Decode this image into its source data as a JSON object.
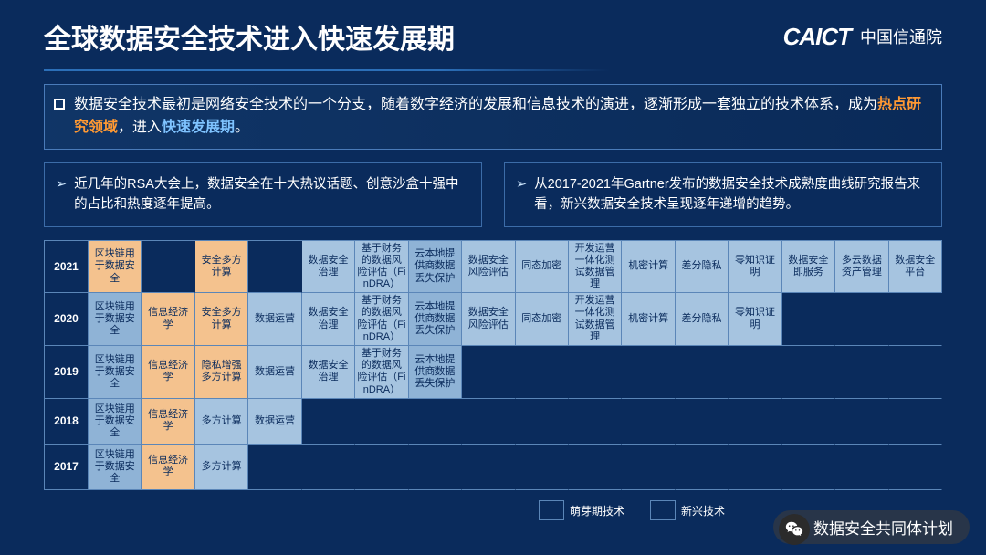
{
  "header": {
    "title": "全球数据安全技术进入快速发展期",
    "logo_en": "CAICT",
    "logo_cn": "中国信通院"
  },
  "description": {
    "pre": "数据安全技术最初是网络安全技术的一个分支，随着数字经济的发展和信息技术的演进，逐渐形成一套独立的技术体系，成为",
    "hl1": "热点研究领域",
    "mid": "，进入",
    "hl2": "快速发展期",
    "post": "。"
  },
  "callouts": {
    "left": "近几年的RSA大会上，数据安全在十大热议话题、创意沙盒十强中的占比和热度逐年提高。",
    "right": "从2017-2021年Gartner发布的数据安全技术成熟度曲线研究报告来看，新兴数据安全技术呈现逐年递增的趋势。"
  },
  "grid": {
    "years": [
      "2021",
      "2020",
      "2019",
      "2018",
      "2017"
    ],
    "rows": [
      [
        {
          "t": "区块链用于数据安全",
          "c": "c-orange"
        },
        {
          "t": "",
          "c": "c-empty"
        },
        {
          "t": "安全多方计算",
          "c": "c-orange"
        },
        {
          "t": "",
          "c": "c-empty"
        },
        {
          "t": "数据安全治理",
          "c": "c-blue1"
        },
        {
          "t": "基于财务的数据风险评估（FinDRA）",
          "c": "c-blue1"
        },
        {
          "t": "云本地提供商数据丢失保护",
          "c": "c-blue2"
        },
        {
          "t": "数据安全风险评估",
          "c": "c-blue1"
        },
        {
          "t": "同态加密",
          "c": "c-blue1"
        },
        {
          "t": "开发运营一体化测试数据管理",
          "c": "c-blue1"
        },
        {
          "t": "机密计算",
          "c": "c-blue1"
        },
        {
          "t": "差分隐私",
          "c": "c-blue1"
        },
        {
          "t": "零知识证明",
          "c": "c-blue1"
        },
        {
          "t": "数据安全即服务",
          "c": "c-blue1"
        },
        {
          "t": "多云数据资产管理",
          "c": "c-blue1"
        },
        {
          "t": "数据安全平台",
          "c": "c-blue1"
        }
      ],
      [
        {
          "t": "区块链用于数据安全",
          "c": "c-blue2"
        },
        {
          "t": "信息经济学",
          "c": "c-orange"
        },
        {
          "t": "安全多方计算",
          "c": "c-orange"
        },
        {
          "t": "数据运营",
          "c": "c-blue1"
        },
        {
          "t": "数据安全治理",
          "c": "c-blue1"
        },
        {
          "t": "基于财务的数据风险评估（FinDRA）",
          "c": "c-blue1"
        },
        {
          "t": "云本地提供商数据丢失保护",
          "c": "c-blue2"
        },
        {
          "t": "数据安全风险评估",
          "c": "c-blue1"
        },
        {
          "t": "同态加密",
          "c": "c-blue1"
        },
        {
          "t": "开发运营一体化测试数据管理",
          "c": "c-blue1"
        },
        {
          "t": "机密计算",
          "c": "c-blue1"
        },
        {
          "t": "差分隐私",
          "c": "c-blue1"
        },
        {
          "t": "零知识证明",
          "c": "c-blue1"
        },
        {
          "t": "",
          "c": "c-empty"
        },
        {
          "t": "",
          "c": "c-empty"
        },
        {
          "t": "",
          "c": "c-empty"
        }
      ],
      [
        {
          "t": "区块链用于数据安全",
          "c": "c-blue2"
        },
        {
          "t": "信息经济学",
          "c": "c-orange"
        },
        {
          "t": "隐私增强多方计算",
          "c": "c-orange"
        },
        {
          "t": "数据运营",
          "c": "c-blue1"
        },
        {
          "t": "数据安全治理",
          "c": "c-blue1"
        },
        {
          "t": "基于财务的数据风险评估（FinDRA）",
          "c": "c-blue1"
        },
        {
          "t": "云本地提供商数据丢失保护",
          "c": "c-blue2"
        },
        {
          "t": "",
          "c": "c-empty"
        },
        {
          "t": "",
          "c": "c-empty"
        },
        {
          "t": "",
          "c": "c-empty"
        },
        {
          "t": "",
          "c": "c-empty"
        },
        {
          "t": "",
          "c": "c-empty"
        },
        {
          "t": "",
          "c": "c-empty"
        },
        {
          "t": "",
          "c": "c-empty"
        },
        {
          "t": "",
          "c": "c-empty"
        },
        {
          "t": "",
          "c": "c-empty"
        }
      ],
      [
        {
          "t": "区块链用于数据安全",
          "c": "c-blue2"
        },
        {
          "t": "信息经济学",
          "c": "c-orange"
        },
        {
          "t": "多方计算",
          "c": "c-blue1"
        },
        {
          "t": "数据运营",
          "c": "c-blue1"
        },
        {
          "t": "",
          "c": "c-empty"
        },
        {
          "t": "",
          "c": "c-empty"
        },
        {
          "t": "",
          "c": "c-empty"
        },
        {
          "t": "",
          "c": "c-empty"
        },
        {
          "t": "",
          "c": "c-empty"
        },
        {
          "t": "",
          "c": "c-empty"
        },
        {
          "t": "",
          "c": "c-empty"
        },
        {
          "t": "",
          "c": "c-empty"
        },
        {
          "t": "",
          "c": "c-empty"
        },
        {
          "t": "",
          "c": "c-empty"
        },
        {
          "t": "",
          "c": "c-empty"
        },
        {
          "t": "",
          "c": "c-empty"
        }
      ],
      [
        {
          "t": "区块链用于数据安全",
          "c": "c-blue2"
        },
        {
          "t": "信息经济学",
          "c": "c-orange"
        },
        {
          "t": "多方计算",
          "c": "c-blue1"
        },
        {
          "t": "",
          "c": "c-empty"
        },
        {
          "t": "",
          "c": "c-empty"
        },
        {
          "t": "",
          "c": "c-empty"
        },
        {
          "t": "",
          "c": "c-empty"
        },
        {
          "t": "",
          "c": "c-empty"
        },
        {
          "t": "",
          "c": "c-empty"
        },
        {
          "t": "",
          "c": "c-empty"
        },
        {
          "t": "",
          "c": "c-empty"
        },
        {
          "t": "",
          "c": "c-empty"
        },
        {
          "t": "",
          "c": "c-empty"
        },
        {
          "t": "",
          "c": "c-empty"
        },
        {
          "t": "",
          "c": "c-empty"
        },
        {
          "t": "",
          "c": "c-empty"
        }
      ]
    ],
    "colors": {
      "orange": "#f4c28e",
      "blue1": "#a6c4e0",
      "blue2": "#8fb3d6",
      "border": "#5b86b8",
      "bg": "#0a2b5c"
    }
  },
  "legend": {
    "items": [
      {
        "label": "萌芽期技术",
        "swatch": "#0a2b5c"
      },
      {
        "label": "新兴技术",
        "swatch": "#0a2b5c"
      }
    ]
  },
  "wechat": {
    "label": "数据安全共同体计划"
  }
}
